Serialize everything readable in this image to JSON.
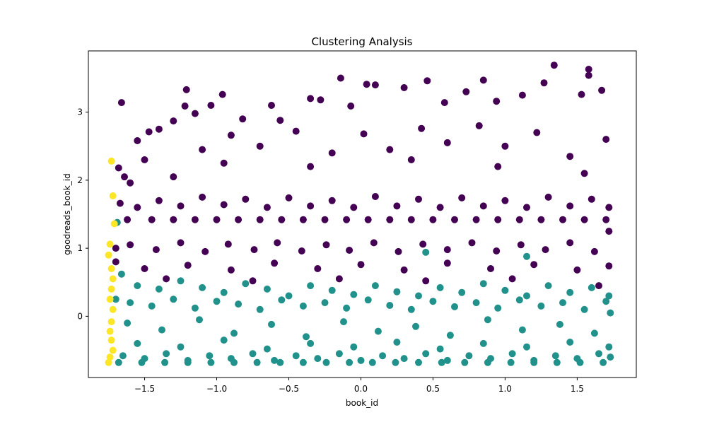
{
  "chart_data": {
    "type": "scatter",
    "title": "Clustering Analysis",
    "xlabel": "book_id",
    "ylabel": "goodreads_book_id",
    "xlim": [
      -1.89,
      1.91
    ],
    "ylim": [
      -0.9,
      3.9
    ],
    "xticks": [
      {
        "value": -1.5,
        "label": "−1.5"
      },
      {
        "value": -1.0,
        "label": "−1.0"
      },
      {
        "value": -0.5,
        "label": "−0.5"
      },
      {
        "value": 0.0,
        "label": "0.0"
      },
      {
        "value": 0.5,
        "label": "0.5"
      },
      {
        "value": 1.0,
        "label": "1.0"
      },
      {
        "value": 1.5,
        "label": "1.5"
      }
    ],
    "yticks": [
      {
        "value": 0,
        "label": "0"
      },
      {
        "value": 1,
        "label": "1"
      },
      {
        "value": 2,
        "label": "2"
      },
      {
        "value": 3,
        "label": "3"
      }
    ],
    "grid": false,
    "legend": "none",
    "colormap": [
      "#440154",
      "#21918c",
      "#fde725"
    ],
    "series": [
      {
        "color": "#440154",
        "points": [
          [
            -1.66,
            3.14
          ],
          [
            -1.68,
            2.18
          ],
          [
            -1.64,
            2.05
          ],
          [
            -1.6,
            1.96
          ],
          [
            -1.55,
            2.58
          ],
          [
            -1.47,
            2.71
          ],
          [
            -1.4,
            2.75
          ],
          [
            -1.3,
            2.87
          ],
          [
            -1.22,
            3.09
          ],
          [
            -1.21,
            3.33
          ],
          [
            -1.15,
            2.98
          ],
          [
            -1.04,
            3.1
          ],
          [
            -0.96,
            3.26
          ],
          [
            -0.82,
            2.9
          ],
          [
            -0.62,
            3.1
          ],
          [
            -0.56,
            2.88
          ],
          [
            -0.35,
            3.2
          ],
          [
            -0.28,
            3.18
          ],
          [
            -0.14,
            3.5
          ],
          [
            -0.07,
            3.09
          ],
          [
            0.04,
            3.41
          ],
          [
            0.1,
            3.4
          ],
          [
            0.3,
            3.36
          ],
          [
            0.46,
            3.46
          ],
          [
            0.58,
            3.14
          ],
          [
            0.73,
            3.3
          ],
          [
            0.85,
            3.47
          ],
          [
            0.94,
            3.16
          ],
          [
            1.12,
            3.25
          ],
          [
            1.27,
            3.43
          ],
          [
            1.34,
            3.69
          ],
          [
            1.58,
            3.63
          ],
          [
            1.67,
            3.32
          ],
          [
            1.58,
            3.54
          ],
          [
            1.53,
            3.26
          ],
          [
            -1.3,
            2.05
          ],
          [
            -1.1,
            2.45
          ],
          [
            -0.9,
            2.66
          ],
          [
            -0.7,
            2.5
          ],
          [
            -0.45,
            2.72
          ],
          [
            -0.2,
            2.4
          ],
          [
            0.02,
            2.68
          ],
          [
            0.2,
            2.45
          ],
          [
            0.42,
            2.76
          ],
          [
            0.6,
            2.55
          ],
          [
            0.82,
            2.8
          ],
          [
            1.0,
            2.5
          ],
          [
            1.22,
            2.7
          ],
          [
            1.45,
            2.35
          ],
          [
            1.7,
            2.6
          ],
          [
            -1.5,
            2.3
          ],
          [
            -0.95,
            2.25
          ],
          [
            -0.35,
            2.2
          ],
          [
            0.35,
            2.3
          ],
          [
            0.95,
            2.2
          ],
          [
            1.55,
            2.1
          ],
          [
            -1.67,
            1.66
          ],
          [
            -1.55,
            1.6
          ],
          [
            -1.4,
            1.7
          ],
          [
            -1.25,
            1.62
          ],
          [
            -1.1,
            1.75
          ],
          [
            -0.95,
            1.64
          ],
          [
            -0.8,
            1.72
          ],
          [
            -0.65,
            1.6
          ],
          [
            -0.5,
            1.74
          ],
          [
            -0.35,
            1.62
          ],
          [
            -0.2,
            1.7
          ],
          [
            -0.05,
            1.6
          ],
          [
            0.1,
            1.76
          ],
          [
            0.25,
            1.62
          ],
          [
            0.4,
            1.72
          ],
          [
            0.55,
            1.6
          ],
          [
            0.7,
            1.74
          ],
          [
            0.85,
            1.62
          ],
          [
            1.0,
            1.7
          ],
          [
            1.15,
            1.6
          ],
          [
            1.3,
            1.75
          ],
          [
            1.45,
            1.62
          ],
          [
            1.6,
            1.72
          ],
          [
            1.72,
            1.6
          ],
          [
            -1.62,
            1.42
          ],
          [
            -1.45,
            1.42
          ],
          [
            -1.3,
            1.42
          ],
          [
            -1.15,
            1.42
          ],
          [
            -1.0,
            1.42
          ],
          [
            -0.85,
            1.42
          ],
          [
            -0.7,
            1.42
          ],
          [
            -0.55,
            1.42
          ],
          [
            -0.4,
            1.42
          ],
          [
            -0.25,
            1.42
          ],
          [
            -0.1,
            1.42
          ],
          [
            0.05,
            1.42
          ],
          [
            0.2,
            1.42
          ],
          [
            0.35,
            1.42
          ],
          [
            0.5,
            1.42
          ],
          [
            0.65,
            1.42
          ],
          [
            0.8,
            1.42
          ],
          [
            0.95,
            1.42
          ],
          [
            1.1,
            1.42
          ],
          [
            1.25,
            1.42
          ],
          [
            1.4,
            1.42
          ],
          [
            1.55,
            1.42
          ],
          [
            1.7,
            1.42
          ],
          [
            -1.6,
            1.05
          ],
          [
            -1.42,
            0.98
          ],
          [
            -1.25,
            1.08
          ],
          [
            -1.08,
            0.95
          ],
          [
            -0.92,
            1.06
          ],
          [
            -0.74,
            0.98
          ],
          [
            -0.58,
            1.08
          ],
          [
            -0.41,
            0.96
          ],
          [
            -0.24,
            1.05
          ],
          [
            -0.08,
            0.97
          ],
          [
            0.09,
            1.08
          ],
          [
            0.26,
            0.95
          ],
          [
            0.43,
            1.06
          ],
          [
            0.6,
            0.98
          ],
          [
            0.77,
            1.08
          ],
          [
            0.94,
            0.96
          ],
          [
            1.11,
            1.05
          ],
          [
            1.28,
            0.98
          ],
          [
            1.45,
            1.08
          ],
          [
            1.62,
            0.95
          ],
          [
            -1.5,
            0.7
          ],
          [
            -1.2,
            0.75
          ],
          [
            -0.9,
            0.68
          ],
          [
            -0.6,
            0.78
          ],
          [
            -0.3,
            0.7
          ],
          [
            0.0,
            0.76
          ],
          [
            0.3,
            0.68
          ],
          [
            0.6,
            0.78
          ],
          [
            0.9,
            0.7
          ],
          [
            1.2,
            0.76
          ],
          [
            1.5,
            0.68
          ],
          [
            1.72,
            0.74
          ],
          [
            -1.35,
            0.55
          ],
          [
            -0.75,
            0.52
          ],
          [
            -0.15,
            0.55
          ],
          [
            0.45,
            0.52
          ],
          [
            1.05,
            0.55
          ],
          [
            1.65,
            0.45
          ],
          [
            1.72,
            1.25
          ],
          [
            -1.7,
            1.0
          ],
          [
            -1.7,
            0.8
          ]
        ]
      },
      {
        "color": "#21918c",
        "points": [
          [
            -1.69,
            1.38
          ],
          [
            -1.66,
            0.62
          ],
          [
            -1.55,
            0.45
          ],
          [
            -1.4,
            0.4
          ],
          [
            -1.25,
            0.52
          ],
          [
            -1.1,
            0.42
          ],
          [
            -0.95,
            0.35
          ],
          [
            -0.8,
            0.48
          ],
          [
            -0.65,
            0.4
          ],
          [
            -0.5,
            0.3
          ],
          [
            -0.35,
            0.45
          ],
          [
            -0.2,
            0.38
          ],
          [
            -0.05,
            0.32
          ],
          [
            0.1,
            0.45
          ],
          [
            0.25,
            0.36
          ],
          [
            0.4,
            0.3
          ],
          [
            0.45,
            0.94
          ],
          [
            0.55,
            0.42
          ],
          [
            0.7,
            0.35
          ],
          [
            0.85,
            0.48
          ],
          [
            1.0,
            0.38
          ],
          [
            1.15,
            0.3
          ],
          [
            1.15,
            0.88
          ],
          [
            1.3,
            0.45
          ],
          [
            1.45,
            0.35
          ],
          [
            1.6,
            0.42
          ],
          [
            1.72,
            0.3
          ],
          [
            -1.6,
            0.2
          ],
          [
            -1.45,
            0.15
          ],
          [
            -1.3,
            0.25
          ],
          [
            -1.15,
            0.12
          ],
          [
            -1.0,
            0.22
          ],
          [
            -0.85,
            0.18
          ],
          [
            -0.7,
            0.1
          ],
          [
            -0.55,
            0.24
          ],
          [
            -0.4,
            0.15
          ],
          [
            -0.25,
            0.2
          ],
          [
            -0.1,
            0.12
          ],
          [
            0.05,
            0.24
          ],
          [
            0.2,
            0.16
          ],
          [
            0.35,
            0.1
          ],
          [
            0.5,
            0.22
          ],
          [
            0.65,
            0.14
          ],
          [
            0.8,
            0.2
          ],
          [
            0.95,
            0.12
          ],
          [
            1.1,
            0.24
          ],
          [
            1.25,
            0.15
          ],
          [
            1.4,
            0.2
          ],
          [
            1.55,
            0.1
          ],
          [
            1.7,
            0.22
          ],
          [
            -1.62,
            -0.1
          ],
          [
            -1.38,
            -0.2
          ],
          [
            -1.12,
            -0.05
          ],
          [
            -0.88,
            -0.25
          ],
          [
            -0.62,
            -0.12
          ],
          [
            -0.38,
            -0.3
          ],
          [
            -0.12,
            -0.08
          ],
          [
            0.12,
            -0.22
          ],
          [
            0.38,
            -0.15
          ],
          [
            0.62,
            -0.28
          ],
          [
            0.88,
            -0.05
          ],
          [
            1.12,
            -0.2
          ],
          [
            1.38,
            -0.12
          ],
          [
            1.62,
            -0.25
          ],
          [
            -1.55,
            -0.4
          ],
          [
            -1.25,
            -0.45
          ],
          [
            -0.95,
            -0.35
          ],
          [
            -0.65,
            -0.48
          ],
          [
            -0.35,
            -0.4
          ],
          [
            -0.05,
            -0.45
          ],
          [
            0.25,
            -0.38
          ],
          [
            0.55,
            -0.48
          ],
          [
            0.85,
            -0.4
          ],
          [
            1.15,
            -0.45
          ],
          [
            1.45,
            -0.38
          ],
          [
            1.72,
            -0.45
          ],
          [
            -1.65,
            -0.58
          ],
          [
            -1.5,
            -0.62
          ],
          [
            -1.35,
            -0.55
          ],
          [
            -1.2,
            -0.65
          ],
          [
            -1.05,
            -0.58
          ],
          [
            -0.9,
            -0.62
          ],
          [
            -0.75,
            -0.55
          ],
          [
            -0.6,
            -0.65
          ],
          [
            -0.45,
            -0.58
          ],
          [
            -0.3,
            -0.62
          ],
          [
            -0.15,
            -0.55
          ],
          [
            0.0,
            -0.65
          ],
          [
            0.15,
            -0.58
          ],
          [
            0.3,
            -0.62
          ],
          [
            0.45,
            -0.55
          ],
          [
            0.6,
            -0.65
          ],
          [
            0.75,
            -0.58
          ],
          [
            0.9,
            -0.62
          ],
          [
            1.05,
            -0.55
          ],
          [
            1.2,
            -0.65
          ],
          [
            1.35,
            -0.58
          ],
          [
            1.5,
            -0.62
          ],
          [
            1.65,
            -0.55
          ],
          [
            -1.68,
            -0.68
          ],
          [
            -1.52,
            -0.68
          ],
          [
            -1.36,
            -0.68
          ],
          [
            -1.2,
            -0.68
          ],
          [
            -1.04,
            -0.68
          ],
          [
            -0.88,
            -0.68
          ],
          [
            -0.72,
            -0.68
          ],
          [
            -0.56,
            -0.68
          ],
          [
            -0.4,
            -0.68
          ],
          [
            -0.24,
            -0.68
          ],
          [
            -0.08,
            -0.68
          ],
          [
            0.08,
            -0.68
          ],
          [
            0.24,
            -0.68
          ],
          [
            0.4,
            -0.68
          ],
          [
            0.56,
            -0.68
          ],
          [
            0.72,
            -0.68
          ],
          [
            0.88,
            -0.68
          ],
          [
            1.04,
            -0.68
          ],
          [
            1.2,
            -0.68
          ],
          [
            1.36,
            -0.68
          ],
          [
            1.52,
            -0.68
          ],
          [
            1.68,
            -0.68
          ],
          [
            1.73,
            -0.6
          ],
          [
            1.73,
            0.05
          ],
          [
            -1.7,
            0.25
          ]
        ]
      },
      {
        "color": "#fde725",
        "points": [
          [
            -1.73,
            2.28
          ],
          [
            -1.72,
            1.77
          ],
          [
            -1.71,
            1.36
          ],
          [
            -1.74,
            1.06
          ],
          [
            -1.75,
            0.9
          ],
          [
            -1.73,
            0.7
          ],
          [
            -1.72,
            0.55
          ],
          [
            -1.73,
            0.4
          ],
          [
            -1.74,
            0.25
          ],
          [
            -1.72,
            0.1
          ],
          [
            -1.73,
            -0.08
          ],
          [
            -1.74,
            -0.22
          ],
          [
            -1.73,
            -0.35
          ],
          [
            -1.72,
            -0.5
          ],
          [
            -1.74,
            -0.6
          ],
          [
            -1.75,
            -0.68
          ]
        ]
      }
    ]
  }
}
